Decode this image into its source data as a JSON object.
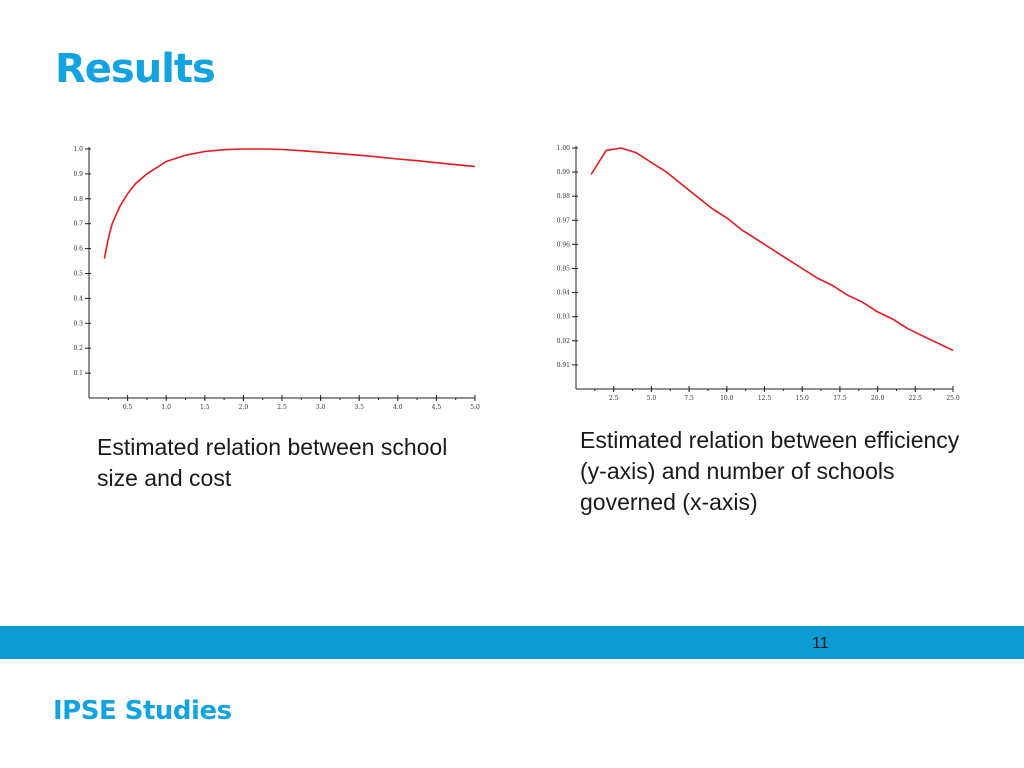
{
  "slide": {
    "title": "Results",
    "page_number": "11",
    "brand": "IPSE Studies"
  },
  "captions": {
    "left": "Estimated relation between school size and cost",
    "right": "Estimated relation between efficiency (y-axis) and number of schools governed (x-axis)"
  },
  "colors": {
    "accent": "#12a3e0",
    "footer_band": "#0e9bd3",
    "curve": "#e8191c"
  },
  "chart_data": [
    {
      "type": "line",
      "title": "",
      "xlabel": "",
      "ylabel": "",
      "xlim": [
        0,
        5.0
      ],
      "ylim": [
        0,
        1.0
      ],
      "x_ticks": [
        0.5,
        1.0,
        1.5,
        2.0,
        2.5,
        3.0,
        3.5,
        4.0,
        4.5,
        5.0
      ],
      "x_tick_labels": [
        "0.5",
        "1.0",
        "1.5",
        "2.0",
        "2.5",
        "3.0",
        "3.5",
        "4.0",
        "4.5",
        "5.0"
      ],
      "y_ticks": [
        0.1,
        0.2,
        0.3,
        0.4,
        0.5,
        0.6,
        0.7,
        0.8,
        0.9,
        1.0
      ],
      "y_tick_labels": [
        "0.1",
        "0.2",
        "0.3",
        "0.4",
        "0.5",
        "0.6",
        "0.7",
        "0.8",
        "0.9",
        "1.0"
      ],
      "grid": false,
      "series": [
        {
          "x": [
            0.2,
            0.25,
            0.3,
            0.4,
            0.5,
            0.6,
            0.75,
            1.0,
            1.25,
            1.5,
            1.75,
            2.0,
            2.25,
            2.5,
            2.75,
            3.0,
            3.25,
            3.5,
            3.75,
            4.0,
            4.25,
            4.5,
            4.75,
            5.0
          ],
          "y": [
            0.56,
            0.64,
            0.7,
            0.77,
            0.82,
            0.86,
            0.9,
            0.95,
            0.975,
            0.99,
            0.997,
            1.0,
            1.0,
            0.998,
            0.993,
            0.987,
            0.981,
            0.975,
            0.968,
            0.96,
            0.953,
            0.945,
            0.937,
            0.93
          ],
          "color": "#e8191c"
        }
      ]
    },
    {
      "type": "line",
      "title": "",
      "xlabel": "",
      "ylabel": "",
      "xlim": [
        0,
        25.0
      ],
      "ylim": [
        0.9,
        1.0
      ],
      "x_ticks": [
        2.5,
        5.0,
        7.5,
        10.0,
        12.5,
        15.0,
        17.5,
        20.0,
        22.5,
        25.0
      ],
      "x_tick_labels": [
        "2.5",
        "5.0",
        "7.5",
        "10.0",
        "12.5",
        "15.0",
        "17.5",
        "20.0",
        "22.5",
        "25.0"
      ],
      "y_ticks": [
        0.91,
        0.92,
        0.93,
        0.94,
        0.95,
        0.96,
        0.97,
        0.98,
        0.99,
        1.0
      ],
      "y_tick_labels": [
        "0.91",
        "0.92",
        "0.93",
        "0.94",
        "0.95",
        "0.96",
        "0.97",
        "0.98",
        "0.99",
        "1.00"
      ],
      "grid": false,
      "series": [
        {
          "x": [
            1,
            2,
            3,
            4,
            5,
            6,
            7,
            8,
            9,
            10,
            11,
            12,
            13,
            14,
            15,
            16,
            17,
            18,
            19,
            20,
            21,
            22,
            23,
            24,
            25
          ],
          "y": [
            0.989,
            0.999,
            1.0,
            0.998,
            0.994,
            0.99,
            0.985,
            0.98,
            0.975,
            0.971,
            0.966,
            0.962,
            0.958,
            0.954,
            0.95,
            0.946,
            0.943,
            0.939,
            0.936,
            0.932,
            0.929,
            0.925,
            0.922,
            0.919,
            0.916
          ],
          "color": "#e8191c"
        }
      ]
    }
  ]
}
